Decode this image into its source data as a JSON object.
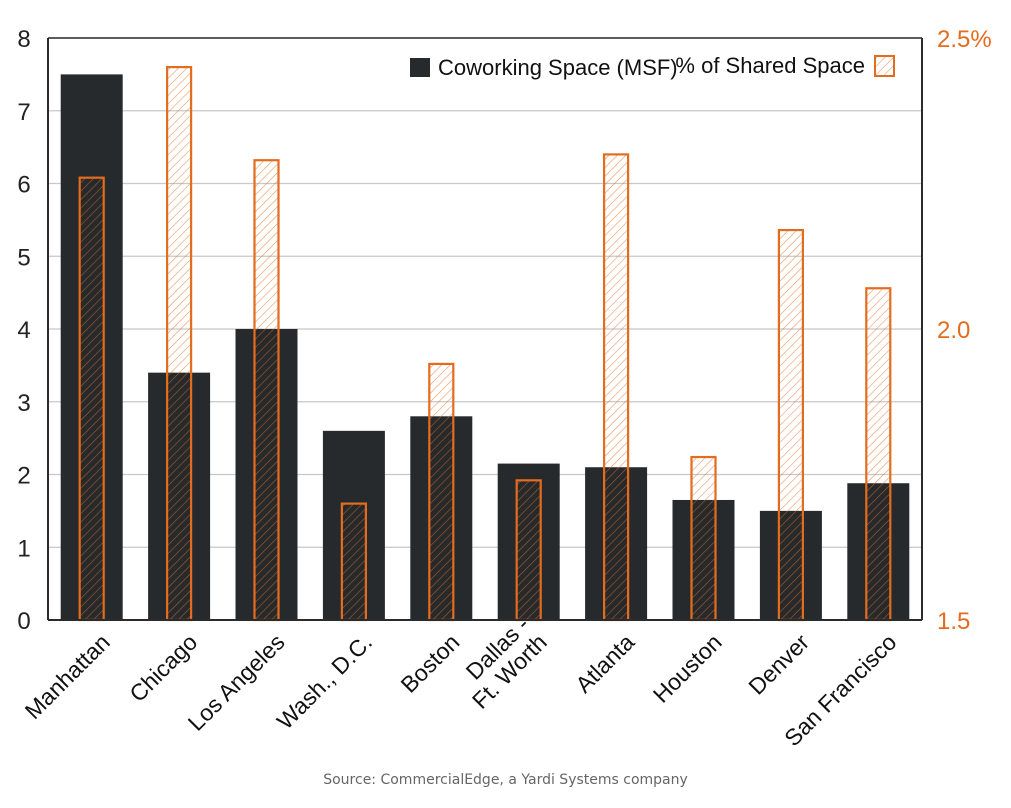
{
  "chart_data": {
    "type": "bar",
    "categories": [
      "Manhattan",
      "Chicago",
      "Los Angeles",
      "Wash., D.C.",
      "Boston",
      "Dallas -\nFt. Worth",
      "Atlanta",
      "Houston",
      "Denver",
      "San Francisco"
    ],
    "series": [
      {
        "name": "Coworking Space (MSF)",
        "axis": "left",
        "color": "#272a2d",
        "values": [
          7.5,
          3.4,
          4.0,
          2.6,
          2.8,
          2.15,
          2.1,
          1.65,
          1.5,
          1.88
        ]
      },
      {
        "name": "% of Shared Space",
        "axis": "right",
        "color": "#e36c1e",
        "values": [
          2.26,
          2.45,
          2.29,
          1.7,
          1.94,
          1.74,
          2.3,
          1.78,
          2.17,
          2.07
        ]
      }
    ],
    "y_left": {
      "ylim": [
        0,
        8
      ],
      "ticks": [
        "0",
        "1",
        "2",
        "3",
        "4",
        "5",
        "6",
        "7",
        "8"
      ]
    },
    "y_right": {
      "ylim": [
        1.5,
        2.5
      ],
      "ticks": [
        {
          "value": 1.5,
          "label": "1.5"
        },
        {
          "value": 2.0,
          "label": "2.0"
        },
        {
          "value": 2.5,
          "label": "2.5%"
        }
      ]
    },
    "grid": true,
    "legend": "top-right"
  },
  "source": "Source: CommercialEdge, a Yardi Systems company"
}
